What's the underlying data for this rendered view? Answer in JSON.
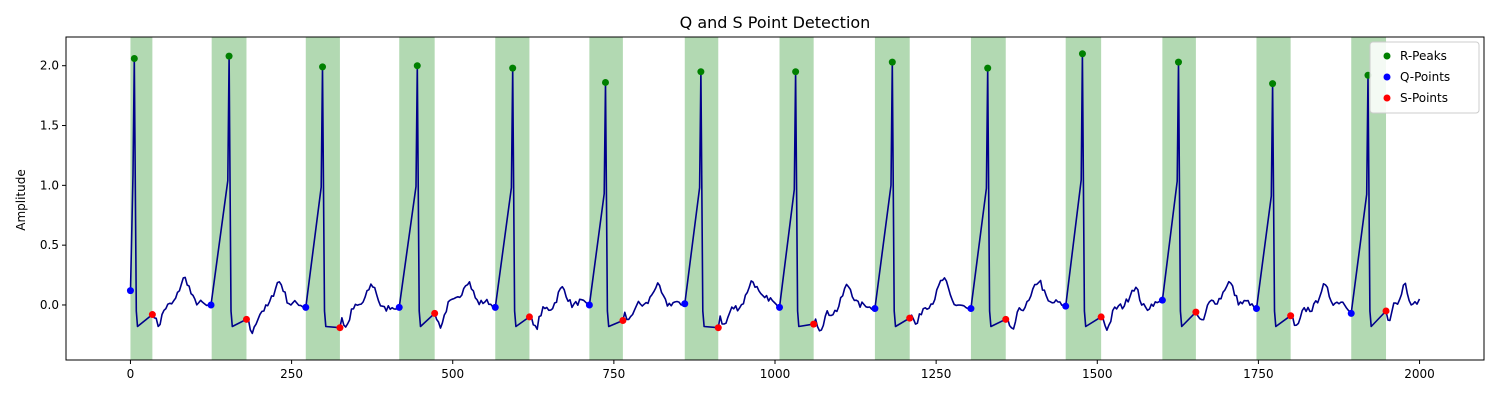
{
  "chart_data": {
    "type": "line",
    "title": "Q and S Point Detection",
    "xlabel": "",
    "ylabel": "Amplitude",
    "xlim": [
      -100,
      2100
    ],
    "ylim": [
      -0.46,
      2.24
    ],
    "xticks": [
      0,
      250,
      500,
      750,
      1000,
      1250,
      1500,
      1750,
      2000
    ],
    "yticks": [
      0.0,
      0.5,
      1.0,
      1.5,
      2.0
    ],
    "ytick_labels": [
      "0.0",
      "0.5",
      "1.0",
      "1.5",
      "2.0"
    ],
    "grid": false,
    "legend_position": "top-right",
    "colors": {
      "signal": "#00008b",
      "r_peaks": "#008000",
      "q_points": "#0000ff",
      "s_points": "#ff0000",
      "qrs_region": "#008000"
    },
    "qrs_regions": [
      [
        0,
        34
      ],
      [
        126,
        180
      ],
      [
        272,
        325
      ],
      [
        417,
        472
      ],
      [
        566,
        619
      ],
      [
        712,
        764
      ],
      [
        860,
        912
      ],
      [
        1007,
        1060
      ],
      [
        1155,
        1209
      ],
      [
        1304,
        1358
      ],
      [
        1451,
        1506
      ],
      [
        1601,
        1653
      ],
      [
        1747,
        1800
      ],
      [
        1894,
        1948
      ]
    ],
    "series": [
      {
        "name": "R-Peaks",
        "marker": "circle",
        "x": [
          6,
          153,
          298,
          445,
          593,
          737,
          885,
          1032,
          1182,
          1330,
          1477,
          1626,
          1772,
          1920
        ],
        "y": [
          2.06,
          2.08,
          1.99,
          2.0,
          1.98,
          1.86,
          1.95,
          1.95,
          2.03,
          1.98,
          2.1,
          2.03,
          1.85,
          1.92
        ]
      },
      {
        "name": "Q-Points",
        "marker": "circle",
        "x": [
          0,
          125,
          272,
          417,
          566,
          712,
          860,
          1007,
          1155,
          1304,
          1451,
          1601,
          1747,
          1894
        ],
        "y": [
          0.12,
          0.0,
          -0.02,
          -0.02,
          -0.02,
          0.0,
          0.01,
          -0.02,
          -0.03,
          -0.03,
          -0.01,
          0.04,
          -0.03,
          -0.07
        ]
      },
      {
        "name": "S-Points",
        "marker": "circle",
        "x": [
          34,
          180,
          325,
          472,
          619,
          764,
          912,
          1060,
          1209,
          1358,
          1506,
          1653,
          1800,
          1948
        ],
        "y": [
          -0.08,
          -0.12,
          -0.19,
          -0.07,
          -0.1,
          -0.13,
          -0.19,
          -0.16,
          -0.11,
          -0.12,
          -0.1,
          -0.06,
          -0.09,
          -0.05
        ]
      }
    ]
  }
}
